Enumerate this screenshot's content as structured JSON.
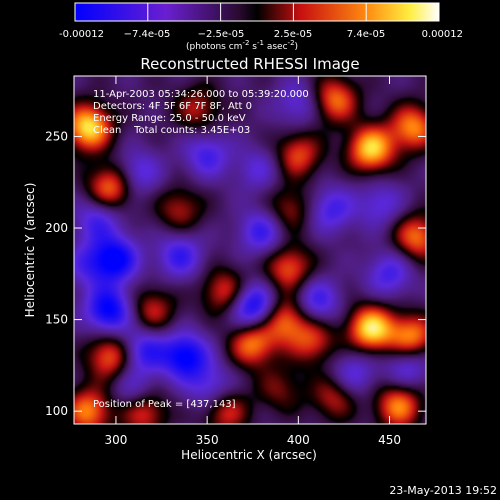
{
  "colorbar": {
    "ticks": [
      "-0.00012",
      "−7.4e-05",
      "−2.5e-05",
      "2.5e-05",
      "7.4e-05",
      "0.00012"
    ],
    "unit_prefix": "(photons cm",
    "unit_exp1": "-2",
    "unit_mid": " s",
    "unit_exp2": "-1",
    "unit_mid2": " asec",
    "unit_exp3": "-2",
    "unit_suffix": ")"
  },
  "chart_data": {
    "type": "heatmap",
    "title": "Reconstructed RHESSI Image",
    "xlabel": "Heliocentric X (arcsec)",
    "ylabel": "Heliocentric Y (arcsec)",
    "xlim": [
      277,
      470
    ],
    "ylim": [
      93,
      283
    ],
    "xticks": [
      300,
      350,
      400,
      450
    ],
    "yticks": [
      100,
      150,
      200,
      250
    ],
    "clim": [
      -0.00012,
      0.00012
    ],
    "colormap": "blue-purple-black-red-yellow-white",
    "annotations": [
      "11-Apr-2003 05:34:26.000 to 05:39:20.000",
      "Detectors: 4F 5F 6F 7F 8F, Att 0",
      "Energy Range: 25.0 - 50.0 keV",
      "Clean    Total counts: 3.45E+03"
    ],
    "peak_label": "Position of Peak = [437,143]",
    "blobs": [
      {
        "x": 285,
        "y": 255,
        "v": 1.0
      },
      {
        "x": 297,
        "y": 222,
        "v": 0.75
      },
      {
        "x": 297,
        "y": 130,
        "v": 0.7
      },
      {
        "x": 285,
        "y": 100,
        "v": 0.75
      },
      {
        "x": 315,
        "y": 100,
        "v": 0.65
      },
      {
        "x": 360,
        "y": 100,
        "v": 0.55
      },
      {
        "x": 320,
        "y": 155,
        "v": 0.5
      },
      {
        "x": 335,
        "y": 210,
        "v": 0.45
      },
      {
        "x": 360,
        "y": 165,
        "v": 0.6
      },
      {
        "x": 395,
        "y": 178,
        "v": 0.65
      },
      {
        "x": 393,
        "y": 150,
        "v": 0.7
      },
      {
        "x": 408,
        "y": 138,
        "v": 0.55
      },
      {
        "x": 400,
        "y": 240,
        "v": 0.6
      },
      {
        "x": 420,
        "y": 270,
        "v": 0.7
      },
      {
        "x": 440,
        "y": 243,
        "v": 0.95
      },
      {
        "x": 463,
        "y": 255,
        "v": 0.75
      },
      {
        "x": 440,
        "y": 145,
        "v": 1.0
      },
      {
        "x": 462,
        "y": 140,
        "v": 0.8
      },
      {
        "x": 375,
        "y": 137,
        "v": 0.75
      },
      {
        "x": 345,
        "y": 265,
        "v": 0.45
      },
      {
        "x": 455,
        "y": 103,
        "v": 0.75
      },
      {
        "x": 420,
        "y": 108,
        "v": 0.5
      },
      {
        "x": 465,
        "y": 195,
        "v": 0.7
      },
      {
        "x": 390,
        "y": 112,
        "v": 0.35
      },
      {
        "x": 395,
        "y": 210,
        "v": 0.45
      },
      {
        "x": 300,
        "y": 183,
        "v": -0.8
      },
      {
        "x": 296,
        "y": 155,
        "v": -0.85
      },
      {
        "x": 338,
        "y": 130,
        "v": -0.85
      },
      {
        "x": 375,
        "y": 157,
        "v": -0.85
      },
      {
        "x": 315,
        "y": 133,
        "v": -0.6
      },
      {
        "x": 335,
        "y": 185,
        "v": -0.55
      },
      {
        "x": 350,
        "y": 240,
        "v": -0.5
      },
      {
        "x": 380,
        "y": 198,
        "v": -0.55
      },
      {
        "x": 418,
        "y": 210,
        "v": -0.5
      },
      {
        "x": 410,
        "y": 160,
        "v": -0.55
      },
      {
        "x": 450,
        "y": 175,
        "v": -0.5
      },
      {
        "x": 445,
        "y": 213,
        "v": -0.4
      },
      {
        "x": 430,
        "y": 120,
        "v": -0.45
      },
      {
        "x": 460,
        "y": 125,
        "v": -0.5
      },
      {
        "x": 312,
        "y": 230,
        "v": -0.45
      },
      {
        "x": 310,
        "y": 110,
        "v": -0.4
      },
      {
        "x": 352,
        "y": 113,
        "v": -0.45
      },
      {
        "x": 378,
        "y": 232,
        "v": -0.35
      },
      {
        "x": 400,
        "y": 268,
        "v": -0.4
      },
      {
        "x": 290,
        "y": 205,
        "v": -0.5
      },
      {
        "x": 285,
        "y": 180,
        "v": -0.4
      }
    ]
  },
  "footer": {
    "date": "23-May-2013 19:52"
  }
}
